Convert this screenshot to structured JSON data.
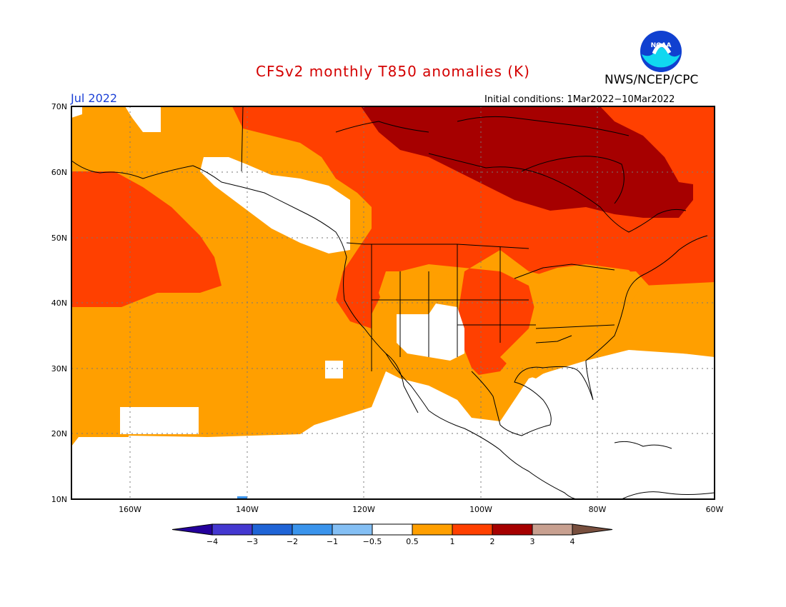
{
  "title": "CFSv2 monthly T850 anomalies (K)",
  "agency": "NWS/NCEP/CPC",
  "logo_text": "NOAA",
  "valid_month": "Jul 2022",
  "initial_conditions": "Initial conditions: 1Mar2022−10Mar2022",
  "map": {
    "lat_labels": [
      "70N",
      "60N",
      "50N",
      "40N",
      "30N",
      "20N",
      "10N"
    ],
    "lon_labels": [
      "160W",
      "140W",
      "120W",
      "100W",
      "80W",
      "60W"
    ]
  },
  "colorbar": {
    "colors": [
      "#24009c",
      "#4438d0",
      "#1f64d6",
      "#3a94ec",
      "#84bff4",
      "#ffffff",
      "#ff9f00",
      "#ff4000",
      "#a60000",
      "#c8a090",
      "#784f3e"
    ],
    "tick_labels": [
      "−4",
      "−3",
      "−2",
      "−1",
      "−0.5",
      "0.5",
      "1",
      "2",
      "3",
      "4"
    ]
  },
  "colors": {
    "warm_0_5_1": "#ff9f00",
    "warm_1_2": "#ff4000",
    "warm_2_3": "#a60000",
    "neutral": "#ffffff",
    "title": "#d40000",
    "month": "#1a3fd6"
  }
}
